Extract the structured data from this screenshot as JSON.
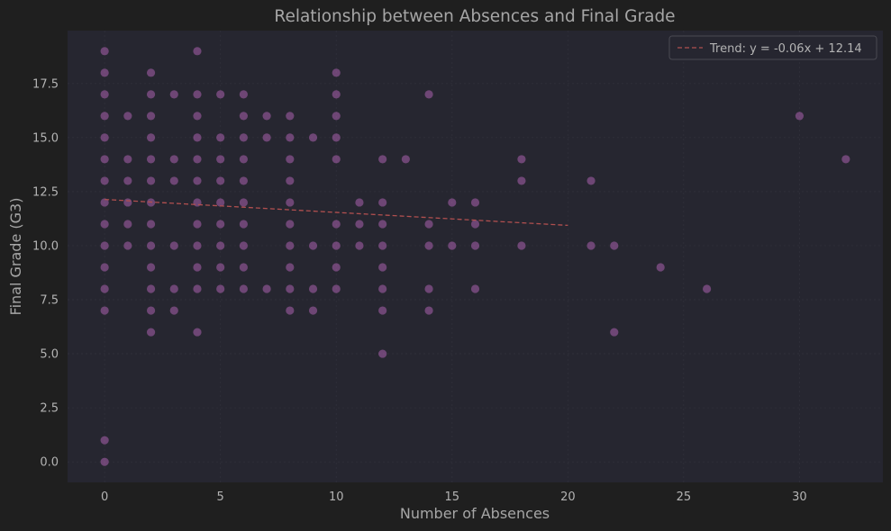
{
  "chart_data": {
    "type": "scatter",
    "title": "Relationship between Absences and Final Grade",
    "xlabel": "Number of Absences",
    "ylabel": "Final Grade (G3)",
    "xlim": [
      -1.6,
      33.6
    ],
    "ylim": [
      -0.95,
      19.95
    ],
    "xticks": [
      0,
      5,
      10,
      15,
      20,
      25,
      30
    ],
    "yticks": [
      0.0,
      2.5,
      5.0,
      7.5,
      10.0,
      12.5,
      15.0,
      17.5
    ],
    "ytick_labels": [
      "0.0",
      "2.5",
      "5.0",
      "7.5",
      "10.0",
      "12.5",
      "15.0",
      "17.5"
    ],
    "grid": true,
    "legend_position": "top-right",
    "colors": {
      "page_background": "#1f1f1f",
      "plot_background": "#262630",
      "point_color": "#c86fc9",
      "trend_color": "#b04f4f",
      "text_color": "#a6a6a6"
    },
    "trend": {
      "label": "Trend: y = -0.06x + 12.14",
      "slope": -0.06,
      "intercept": 12.14,
      "x_range": [
        0,
        20
      ]
    },
    "series": [
      {
        "points": [
          [
            0,
            0
          ],
          [
            0,
            1
          ],
          [
            0,
            7
          ],
          [
            0,
            8
          ],
          [
            0,
            9
          ],
          [
            0,
            10
          ],
          [
            0,
            11
          ],
          [
            0,
            12
          ],
          [
            0,
            13
          ],
          [
            0,
            14
          ],
          [
            0,
            15
          ],
          [
            0,
            16
          ],
          [
            0,
            17
          ],
          [
            0,
            18
          ],
          [
            0,
            19
          ],
          [
            1,
            10
          ],
          [
            1,
            11
          ],
          [
            1,
            12
          ],
          [
            1,
            13
          ],
          [
            1,
            14
          ],
          [
            1,
            16
          ],
          [
            2,
            6
          ],
          [
            2,
            7
          ],
          [
            2,
            8
          ],
          [
            2,
            9
          ],
          [
            2,
            10
          ],
          [
            2,
            11
          ],
          [
            2,
            12
          ],
          [
            2,
            13
          ],
          [
            2,
            14
          ],
          [
            2,
            15
          ],
          [
            2,
            16
          ],
          [
            2,
            17
          ],
          [
            2,
            18
          ],
          [
            3,
            7
          ],
          [
            3,
            8
          ],
          [
            3,
            10
          ],
          [
            3,
            13
          ],
          [
            3,
            14
          ],
          [
            3,
            17
          ],
          [
            4,
            6
          ],
          [
            4,
            8
          ],
          [
            4,
            9
          ],
          [
            4,
            10
          ],
          [
            4,
            11
          ],
          [
            4,
            12
          ],
          [
            4,
            13
          ],
          [
            4,
            14
          ],
          [
            4,
            15
          ],
          [
            4,
            16
          ],
          [
            4,
            17
          ],
          [
            4,
            19
          ],
          [
            5,
            8
          ],
          [
            5,
            9
          ],
          [
            5,
            10
          ],
          [
            5,
            11
          ],
          [
            5,
            12
          ],
          [
            5,
            13
          ],
          [
            5,
            14
          ],
          [
            5,
            15
          ],
          [
            5,
            17
          ],
          [
            6,
            8
          ],
          [
            6,
            9
          ],
          [
            6,
            10
          ],
          [
            6,
            11
          ],
          [
            6,
            12
          ],
          [
            6,
            13
          ],
          [
            6,
            14
          ],
          [
            6,
            15
          ],
          [
            6,
            16
          ],
          [
            6,
            17
          ],
          [
            7,
            8
          ],
          [
            7,
            15
          ],
          [
            7,
            16
          ],
          [
            8,
            7
          ],
          [
            8,
            8
          ],
          [
            8,
            9
          ],
          [
            8,
            10
          ],
          [
            8,
            11
          ],
          [
            8,
            12
          ],
          [
            8,
            13
          ],
          [
            8,
            14
          ],
          [
            8,
            15
          ],
          [
            8,
            16
          ],
          [
            9,
            7
          ],
          [
            9,
            8
          ],
          [
            9,
            10
          ],
          [
            9,
            15
          ],
          [
            10,
            8
          ],
          [
            10,
            9
          ],
          [
            10,
            10
          ],
          [
            10,
            11
          ],
          [
            10,
            14
          ],
          [
            10,
            15
          ],
          [
            10,
            16
          ],
          [
            10,
            17
          ],
          [
            10,
            18
          ],
          [
            11,
            10
          ],
          [
            11,
            11
          ],
          [
            11,
            12
          ],
          [
            12,
            5
          ],
          [
            12,
            7
          ],
          [
            12,
            8
          ],
          [
            12,
            9
          ],
          [
            12,
            10
          ],
          [
            12,
            11
          ],
          [
            12,
            12
          ],
          [
            12,
            14
          ],
          [
            13,
            14
          ],
          [
            14,
            7
          ],
          [
            14,
            8
          ],
          [
            14,
            10
          ],
          [
            14,
            11
          ],
          [
            14,
            17
          ],
          [
            15,
            10
          ],
          [
            15,
            12
          ],
          [
            16,
            8
          ],
          [
            16,
            10
          ],
          [
            16,
            11
          ],
          [
            16,
            12
          ],
          [
            18,
            10
          ],
          [
            18,
            13
          ],
          [
            18,
            14
          ],
          [
            21,
            10
          ],
          [
            21,
            13
          ],
          [
            22,
            6
          ],
          [
            22,
            10
          ],
          [
            24,
            9
          ],
          [
            26,
            8
          ],
          [
            30,
            16
          ],
          [
            32,
            14
          ]
        ]
      }
    ]
  }
}
